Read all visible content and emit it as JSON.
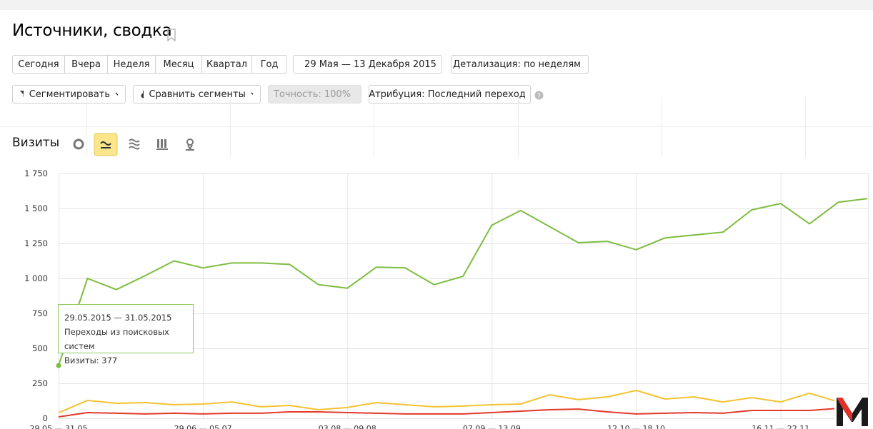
{
  "header": {
    "title": "Источники, сводка"
  },
  "periods": [
    "Сегодня",
    "Вчера",
    "Неделя",
    "Месяц",
    "Квартал",
    "Год"
  ],
  "date_range": "29 Мая — 13 Декабря 2015",
  "detail": "Детализация: по неделям",
  "filters": {
    "segment": "Сегментировать",
    "compare": "Сравнить сегменты",
    "accuracy": "Точность: 100%",
    "attribution": "Атрибуция: Последний переход"
  },
  "metric": "Визиты",
  "tooltip": {
    "date": "29.05.2015 — 31.05.2015",
    "metric": "Визиты: 377"
  },
  "chart_data": {
    "type": "line",
    "categories": [
      "29.05 — 31.05",
      null,
      null,
      null,
      null,
      "29.06 — 05.07",
      null,
      null,
      null,
      null,
      "03.08 — 09.08",
      null,
      null,
      null,
      null,
      "07.09 — 13.09",
      null,
      null,
      null,
      null,
      "12.10 — 18.10",
      null,
      null,
      null,
      null,
      "16.11 — 22.11",
      null,
      null,
      null
    ],
    "series": [
      {
        "name": "Переходы из поисковых систем",
        "color": "#7dbd3f",
        "values": [
          377,
          1000,
          920,
          1020,
          1125,
          1075,
          1110,
          1110,
          1100,
          955,
          930,
          1080,
          1075,
          955,
          1015,
          1380,
          1485,
          1370,
          1255,
          1265,
          1205,
          1290,
          1310,
          1330,
          1490,
          1535,
          1390,
          1545,
          1570
        ]
      },
      {
        "color": "#f4c231",
        "values": [
          40,
          128,
          107,
          112,
          97,
          102,
          117,
          82,
          92,
          61,
          77,
          112,
          97,
          82,
          87,
          97,
          102,
          168,
          133,
          153,
          199,
          138,
          153,
          117,
          148,
          117,
          179,
          117,
          128
        ]
      },
      {
        "color": "#e33a2a",
        "values": [
          10,
          41,
          36,
          31,
          36,
          31,
          36,
          36,
          46,
          46,
          41,
          36,
          31,
          31,
          31,
          41,
          51,
          61,
          66,
          46,
          31,
          36,
          41,
          36,
          56,
          56,
          56,
          71,
          66
        ]
      }
    ],
    "ylim": [
      0,
      1750
    ],
    "yticks": [
      0,
      250,
      500,
      750,
      {
        "value": 1000,
        "label": "1 000"
      },
      {
        "value": 1250,
        "label": "1 250"
      },
      {
        "value": 1500,
        "label": "1 500"
      },
      {
        "value": 1750,
        "label": "1 750"
      }
    ],
    "grid": true
  }
}
